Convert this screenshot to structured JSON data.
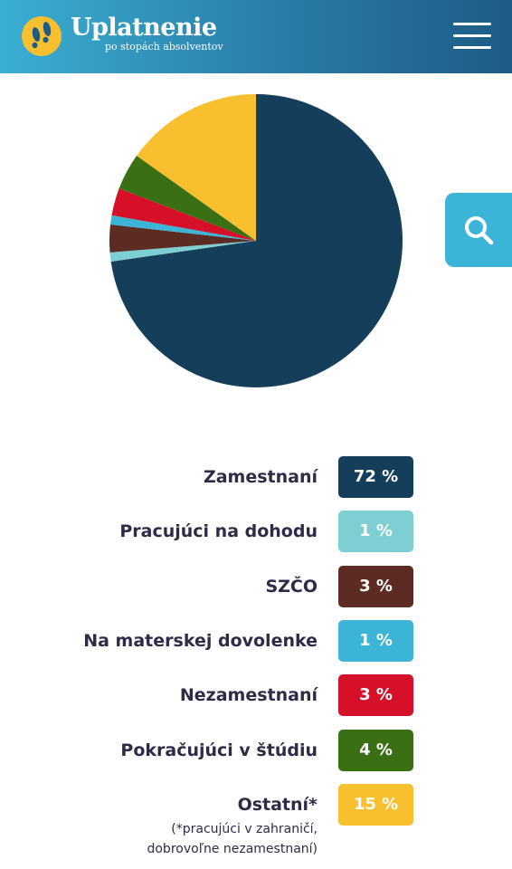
{
  "header": {
    "brand_title": "Uplatnenie",
    "brand_subtitle": "po stopách absolventov",
    "logo_icon": "footprints-logo-icon",
    "menu_icon": "hamburger-menu-icon",
    "background_colors": [
      "#3aaed3",
      "#1d5c86"
    ]
  },
  "search": {
    "icon": "search-icon",
    "color": "#3bb4d8"
  },
  "chart_data": {
    "type": "pie",
    "slices": [
      {
        "label": "Zamestnaní",
        "value": 72,
        "display": "72 %",
        "color": "#153e5a"
      },
      {
        "label": "Pracujúci na dohodu",
        "value": 1,
        "display": "1 %",
        "color": "#7ecfd4"
      },
      {
        "label": "SZČO",
        "value": 3,
        "display": "3 %",
        "color": "#5c2c24"
      },
      {
        "label": "Na materskej dovolenke",
        "value": 1,
        "display": "1 %",
        "color": "#3bb4d8"
      },
      {
        "label": "Nezamestnaní",
        "value": 3,
        "display": "3 %",
        "color": "#d7102a"
      },
      {
        "label": "Pokračujúci v štúdiu",
        "value": 4,
        "display": "4 %",
        "color": "#3a6f13"
      },
      {
        "label": "Ostatní*",
        "value": 15,
        "display": "15 %",
        "color": "#f8bf2f"
      }
    ]
  },
  "footnote": {
    "line1": "(*pracujúci v zahraničí,",
    "line2": "dobrovoľne nezamestnaní)"
  }
}
